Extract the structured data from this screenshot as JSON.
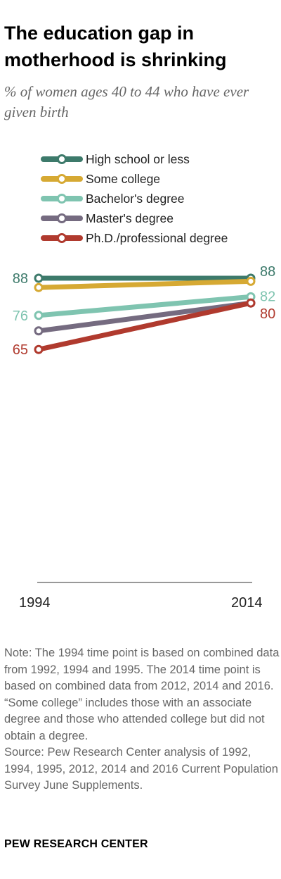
{
  "chart_data": {
    "type": "line",
    "title": "The education gap in motherhood is shrinking",
    "subtitle": "% of women ages 40 to 44 who have ever given birth",
    "x": [
      "1994",
      "2014"
    ],
    "ylim": [
      0,
      100
    ],
    "grid": false,
    "legend_position": "top-left",
    "series": [
      {
        "name": "High school or less",
        "color": "#3d7a6b",
        "values": [
          88,
          88
        ],
        "labels": [
          "88",
          "88"
        ]
      },
      {
        "name": "Some college",
        "color": "#d6a933",
        "values": [
          85,
          87
        ],
        "labels": [
          "",
          ""
        ]
      },
      {
        "name": "Bachelor's degree",
        "color": "#7fc4b0",
        "values": [
          76,
          82
        ],
        "labels": [
          "76",
          "82"
        ]
      },
      {
        "name": "Master's degree",
        "color": "#756b80",
        "values": [
          71,
          80
        ],
        "labels": [
          "",
          ""
        ]
      },
      {
        "name": "Ph.D./professional degree",
        "color": "#b03a2e",
        "values": [
          65,
          80
        ],
        "labels": [
          "65",
          "80"
        ]
      }
    ]
  },
  "footer": {
    "note": "Note: The 1994 time point is based on combined data from 1992, 1994 and 1995. The 2014 time point is based on combined data from 2012, 2014 and 2016. “Some college” includes those with an associate degree and those who attended college but did not obtain a degree.",
    "source": "Source: Pew Research Center analysis of 1992, 1994, 1995, 2012, 2014 and 2016 Current Population Survey June Supplements.",
    "brand": "PEW RESEARCH CENTER"
  }
}
